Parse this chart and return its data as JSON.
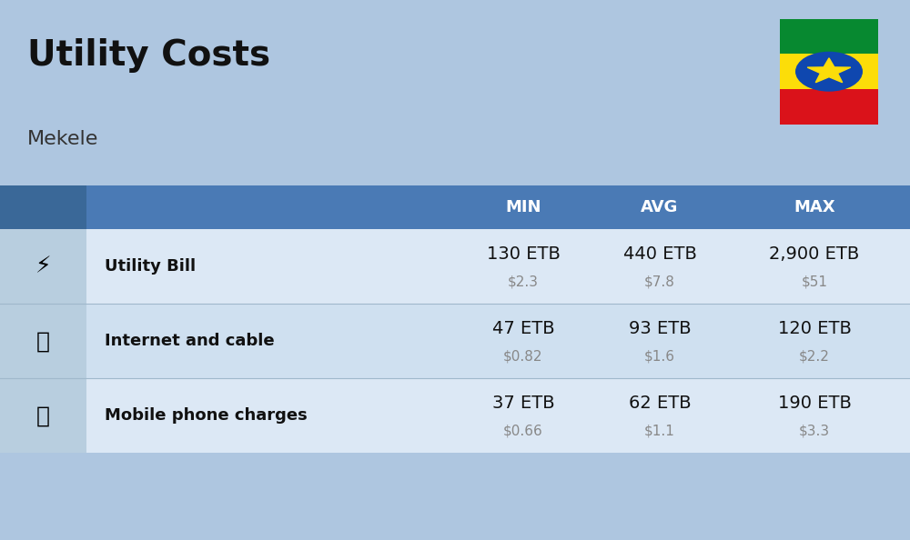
{
  "title": "Utility Costs",
  "subtitle": "Mekele",
  "background_color": "#aec6e0",
  "header_color": "#4a7ab5",
  "header_text_color": "#ffffff",
  "icon_col_color": "#b8cedf",
  "icon_col_header_color": "#3a6898",
  "row_colors": [
    "#dce8f5",
    "#cfe0f0"
  ],
  "divider_color": "#a0b8cc",
  "columns": [
    "MIN",
    "AVG",
    "MAX"
  ],
  "rows": [
    {
      "label": "Utility Bill",
      "min_etb": "130 ETB",
      "min_usd": "$2.3",
      "avg_etb": "440 ETB",
      "avg_usd": "$7.8",
      "max_etb": "2,900 ETB",
      "max_usd": "$51"
    },
    {
      "label": "Internet and cable",
      "min_etb": "47 ETB",
      "min_usd": "$0.82",
      "avg_etb": "93 ETB",
      "avg_usd": "$1.6",
      "max_etb": "120 ETB",
      "max_usd": "$2.2"
    },
    {
      "label": "Mobile phone charges",
      "min_etb": "37 ETB",
      "min_usd": "$0.66",
      "avg_etb": "62 ETB",
      "avg_usd": "$1.1",
      "max_etb": "190 ETB",
      "max_usd": "$3.3"
    }
  ],
  "title_fontsize": 28,
  "subtitle_fontsize": 16,
  "header_fontsize": 13,
  "label_fontsize": 13,
  "value_fontsize": 14,
  "usd_fontsize": 11,
  "flag_colors": {
    "green": "#078930",
    "yellow": "#FCDD09",
    "red": "#DA121A",
    "blue": "#0F47AF",
    "star": "#FCDD09"
  }
}
